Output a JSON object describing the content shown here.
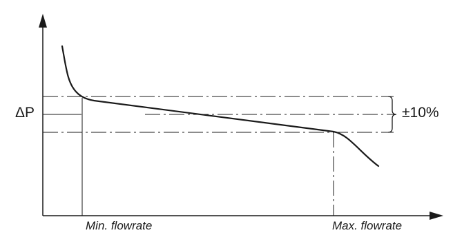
{
  "labels": {
    "delta_p": "ΔP",
    "tolerance": "±10%",
    "min_flowrate": "Min. flowrate",
    "max_flowrate": "Max. flowrate"
  },
  "colors": {
    "ink": "#1a1a1a",
    "background": "#ffffff"
  }
}
